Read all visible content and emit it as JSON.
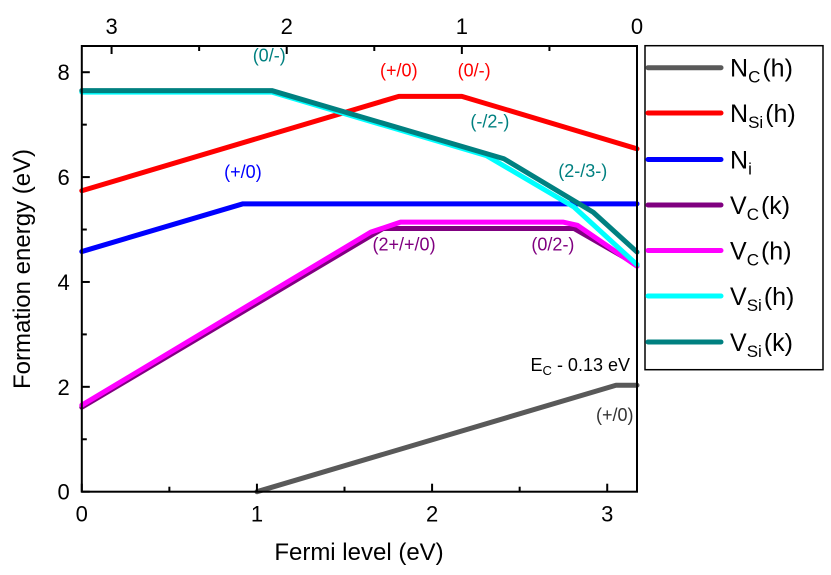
{
  "chart_data": {
    "type": "line",
    "title": "",
    "xlabel": "Fermi level (eV)",
    "ylabel": "Formation energy (eV)",
    "xlim": [
      0,
      3.17
    ],
    "ylim": [
      0,
      8.5
    ],
    "x_ticks": [
      "0",
      "1",
      "2",
      "3"
    ],
    "x_tick_values": [
      0,
      1,
      2,
      3
    ],
    "y_ticks": [
      "0",
      "2",
      "4",
      "6",
      "8"
    ],
    "y_tick_values": [
      0,
      2,
      4,
      6,
      8
    ],
    "top_axis": {
      "ticks": [
        "3",
        "2",
        "1",
        "0"
      ],
      "tick_values": [
        3,
        2,
        1,
        0
      ],
      "relation": "top = 3.17 - x"
    },
    "grid": false,
    "legend": {
      "placement": "right-outside"
    },
    "series": [
      {
        "name": "N_C(h)",
        "legend": {
          "base": "N",
          "sub": "C",
          "suffix": "(h)"
        },
        "color": "#595959",
        "points": [
          [
            1.0,
            0.0
          ],
          [
            3.05,
            2.03
          ],
          [
            3.17,
            2.03
          ]
        ]
      },
      {
        "name": "N_Si(h)",
        "legend": {
          "base": "N",
          "sub": "Si",
          "suffix": "(h)"
        },
        "color": "#ff0000",
        "points": [
          [
            0,
            5.74
          ],
          [
            1.81,
            7.54
          ],
          [
            2.17,
            7.54
          ],
          [
            3.17,
            6.54
          ]
        ]
      },
      {
        "name": "N_i",
        "legend": {
          "base": "N",
          "sub": "i",
          "suffix": ""
        },
        "color": "#0000ff",
        "points": [
          [
            0,
            4.58
          ],
          [
            0.92,
            5.49
          ],
          [
            3.17,
            5.49
          ]
        ]
      },
      {
        "name": "V_C(k)",
        "legend": {
          "base": "V",
          "sub": "C",
          "suffix": "(k)"
        },
        "color": "#800080",
        "points": [
          [
            0,
            1.61
          ],
          [
            1.72,
            5.02
          ],
          [
            2.81,
            5.02
          ],
          [
            3.17,
            4.33
          ]
        ]
      },
      {
        "name": "V_C(h)",
        "legend": {
          "base": "V",
          "sub": "C",
          "suffix": "(h)"
        },
        "color": "#ff00ff",
        "points": [
          [
            0,
            1.65
          ],
          [
            1.65,
            4.95
          ],
          [
            1.82,
            5.14
          ],
          [
            2.75,
            5.14
          ],
          [
            2.83,
            5.08
          ],
          [
            3.17,
            4.3
          ]
        ]
      },
      {
        "name": "V_Si(h)",
        "legend": {
          "base": "V",
          "sub": "Si",
          "suffix": "(h)"
        },
        "color": "#00ffff",
        "points": [
          [
            0,
            7.62
          ],
          [
            1.085,
            7.62
          ],
          [
            2.31,
            6.41
          ],
          [
            2.81,
            5.43
          ],
          [
            3.17,
            4.33
          ]
        ]
      },
      {
        "name": "V_Si(k)",
        "legend": {
          "base": "V",
          "sub": "Si",
          "suffix": "(k)"
        },
        "color": "#008080",
        "points": [
          [
            0,
            7.65
          ],
          [
            1.085,
            7.65
          ],
          [
            2.41,
            6.35
          ],
          [
            2.92,
            5.33
          ],
          [
            3.17,
            4.57
          ]
        ]
      }
    ],
    "annotations": [
      {
        "text": "(0/-)",
        "color": "#008080",
        "x": 1.07,
        "y": 8.2,
        "anchor": "middle"
      },
      {
        "text": "(+/0)",
        "color": "#ff0000",
        "x": 1.81,
        "y": 7.92,
        "anchor": "middle"
      },
      {
        "text": "(0/-)",
        "color": "#ff0000",
        "x": 2.24,
        "y": 7.92,
        "anchor": "middle"
      },
      {
        "text": "(-/2-)",
        "color": "#008080",
        "x": 2.33,
        "y": 6.95,
        "anchor": "middle"
      },
      {
        "text": "(2-/3-)",
        "color": "#008080",
        "x": 2.86,
        "y": 6.0,
        "anchor": "middle"
      },
      {
        "text": "(+/0)",
        "color": "#0000ff",
        "x": 0.92,
        "y": 5.98,
        "anchor": "middle"
      },
      {
        "text": "(2+/+/0)",
        "color": "#800080",
        "x": 1.84,
        "y": 4.6,
        "anchor": "middle"
      },
      {
        "text": "(0/2-)",
        "color": "#800080",
        "x": 2.69,
        "y": 4.6,
        "anchor": "middle"
      },
      {
        "text": "(+/0)",
        "color": "#333333",
        "x": 3.15,
        "y": 1.35,
        "anchor": "end"
      }
    ],
    "ec_annotation": {
      "base": "E",
      "sub": "C",
      "rest": " - 0.13 eV",
      "color": "#000000",
      "x": 3.13,
      "y": 2.3
    }
  }
}
